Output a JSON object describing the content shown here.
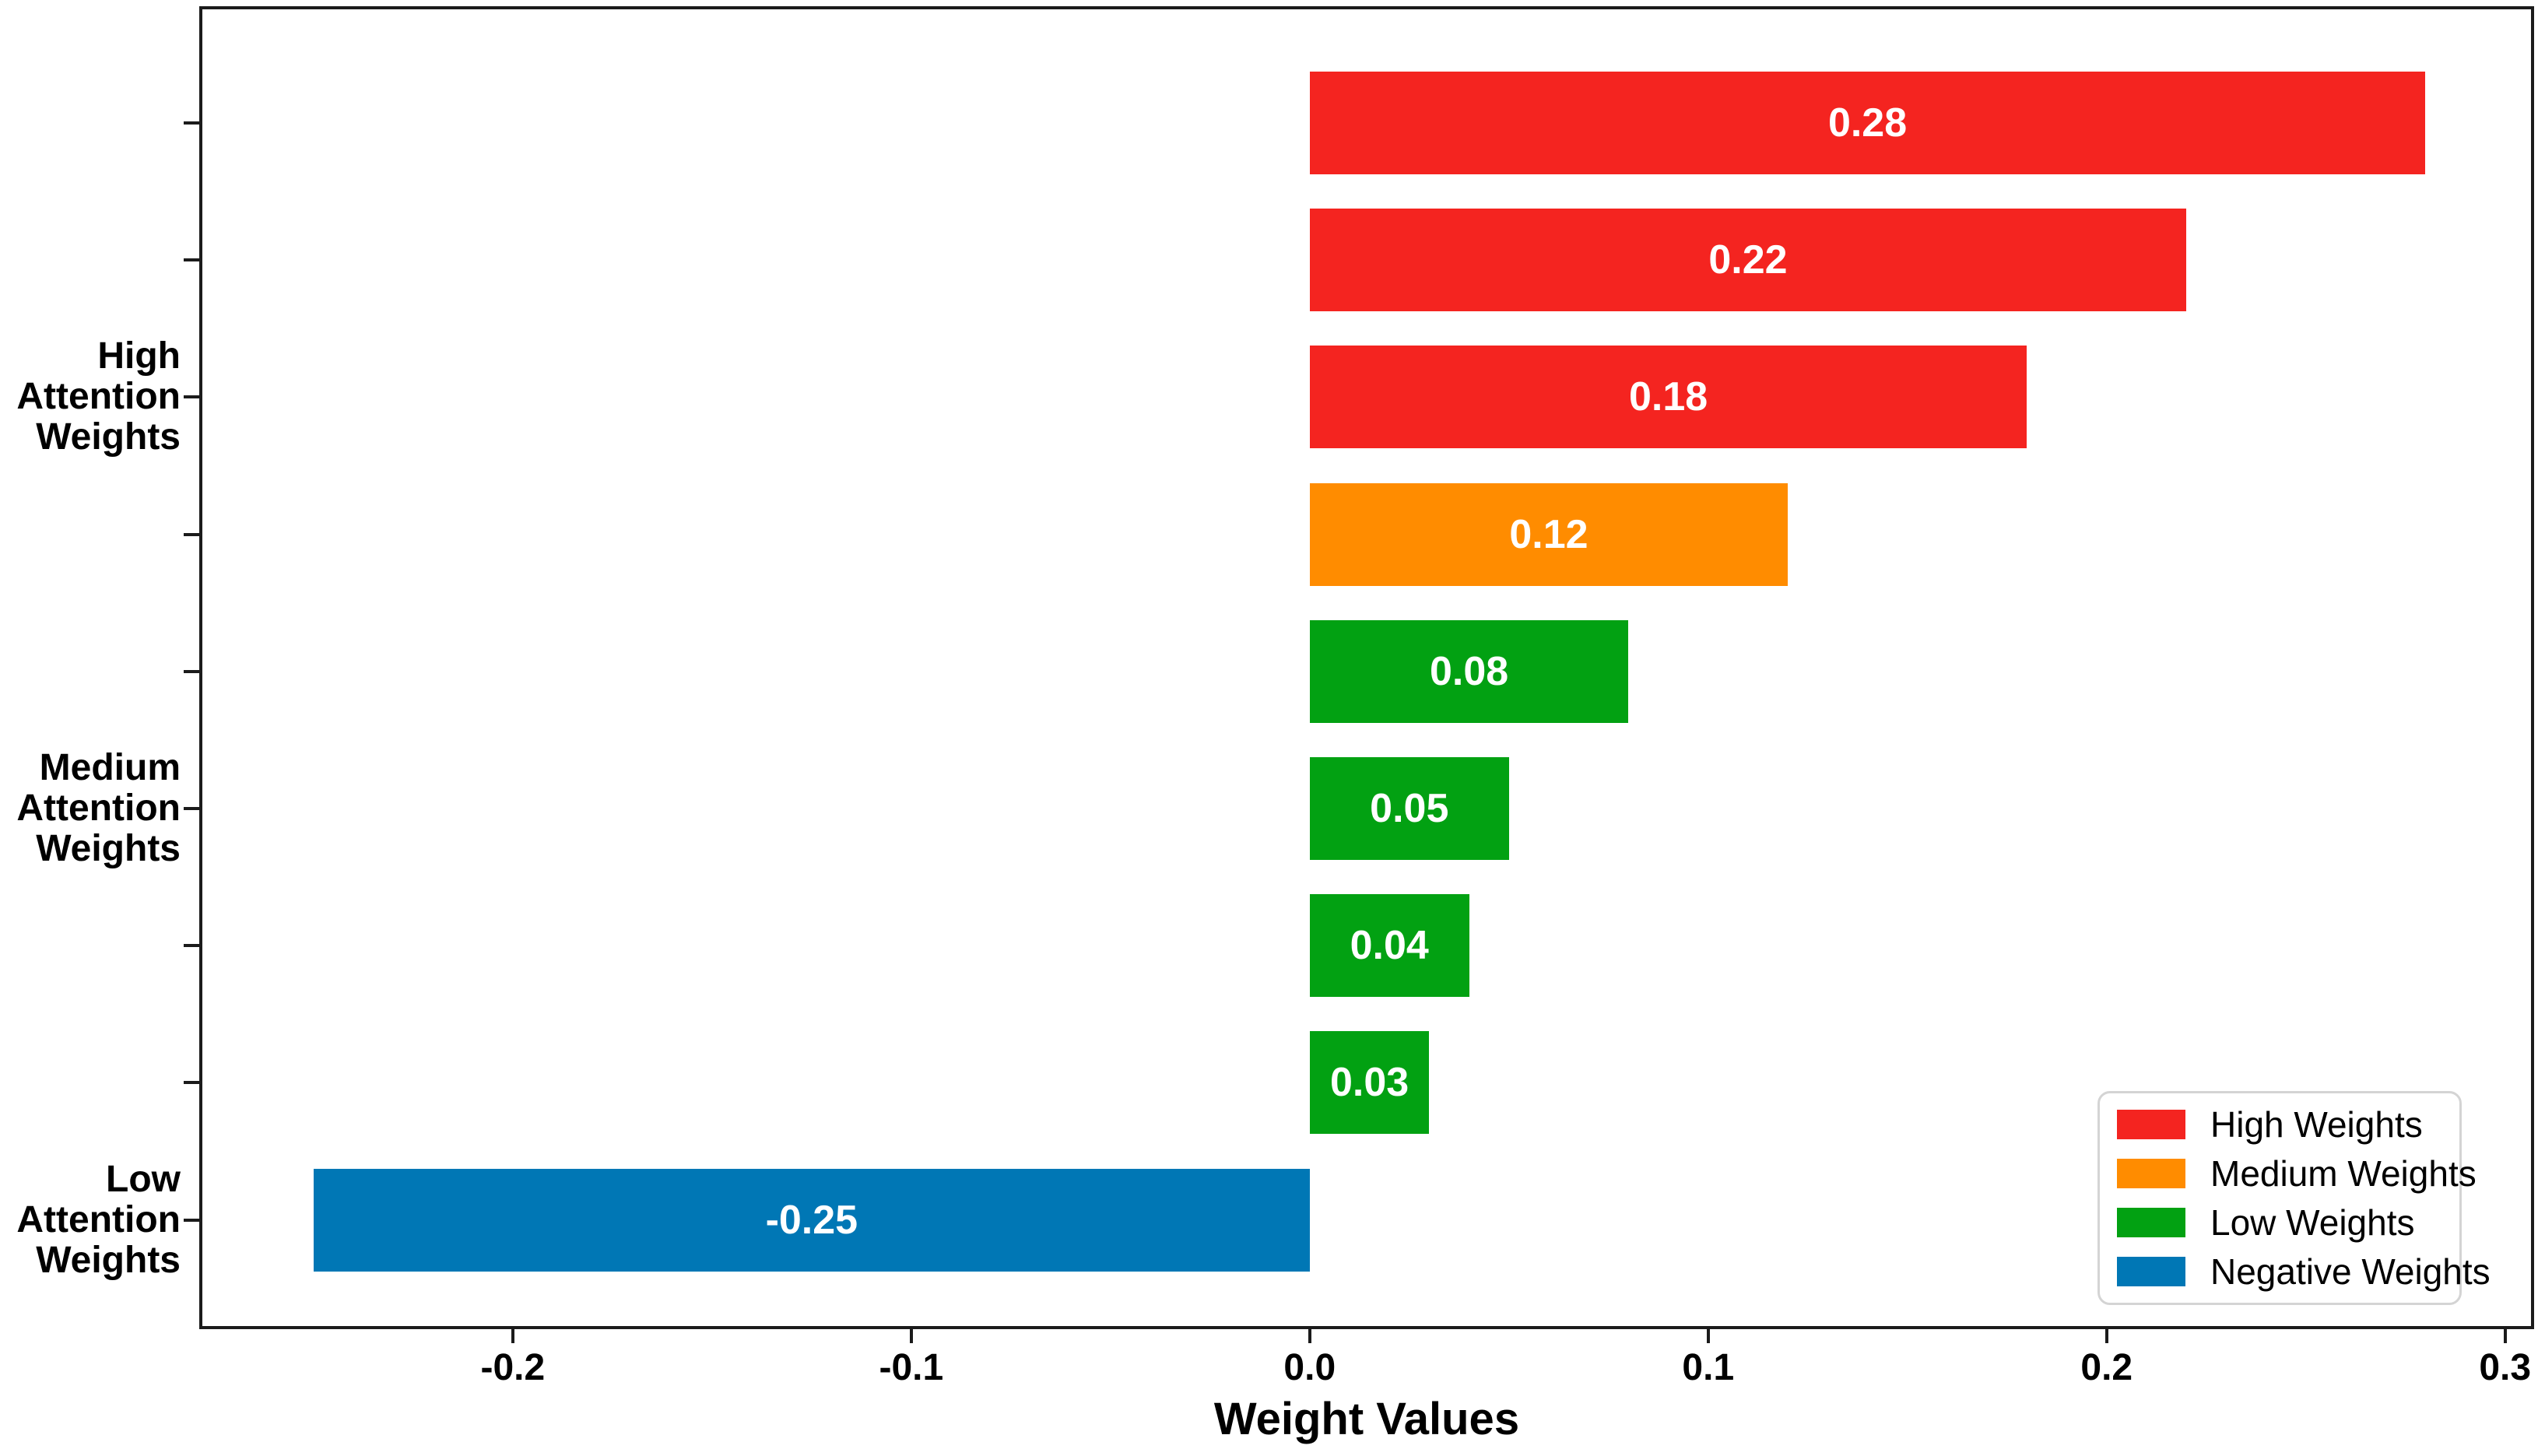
{
  "chart_data": {
    "type": "bar",
    "orientation": "horizontal",
    "title": "",
    "xlabel": "Weight Values",
    "ylabel": "",
    "grid": false,
    "xlim": [
      -0.2783,
      0.3065
    ],
    "x_ticks": [
      -0.2,
      -0.1,
      0.0,
      0.1,
      0.2,
      0.3
    ],
    "x_tick_labels": [
      "-0.2",
      "-0.1",
      "0.0",
      "0.1",
      "0.2",
      "0.3"
    ],
    "bars": [
      {
        "value": 0.28,
        "label": "0.28",
        "series": "High Weights",
        "color": "#f42420"
      },
      {
        "value": 0.22,
        "label": "0.22",
        "series": "High Weights",
        "color": "#f42420"
      },
      {
        "value": 0.18,
        "label": "0.18",
        "series": "High Weights",
        "color": "#f42420"
      },
      {
        "value": 0.12,
        "label": "0.12",
        "series": "Medium Weights",
        "color": "#ff8c00"
      },
      {
        "value": 0.08,
        "label": "0.08",
        "series": "Low Weights",
        "color": "#02a112"
      },
      {
        "value": 0.05,
        "label": "0.05",
        "series": "Low Weights",
        "color": "#02a112"
      },
      {
        "value": 0.04,
        "label": "0.04",
        "series": "Low Weights",
        "color": "#02a112"
      },
      {
        "value": 0.03,
        "label": "0.03",
        "series": "Low Weights",
        "color": "#02a112"
      },
      {
        "value": -0.25,
        "label": "-0.25",
        "series": "Negative Weights",
        "color": "#0077b5"
      }
    ],
    "y_axis_group_labels": [
      {
        "lines": [
          "High",
          "Attention",
          "Weights"
        ],
        "bar_index": 2
      },
      {
        "lines": [
          "Medium",
          "Attention",
          "Weights"
        ],
        "bar_index": 5
      },
      {
        "lines": [
          "Low",
          "Attention",
          "Weights"
        ],
        "bar_index": 8
      }
    ],
    "legend": {
      "position": "lower right",
      "items": [
        {
          "label": "High Weights",
          "color": "#f42420"
        },
        {
          "label": "Medium Weights",
          "color": "#ff8c00"
        },
        {
          "label": "Low Weights",
          "color": "#02a112"
        },
        {
          "label": "Negative Weights",
          "color": "#0077b5"
        }
      ]
    },
    "value_label_color": "#ffffff",
    "axis_color": "#1b1b1b"
  }
}
